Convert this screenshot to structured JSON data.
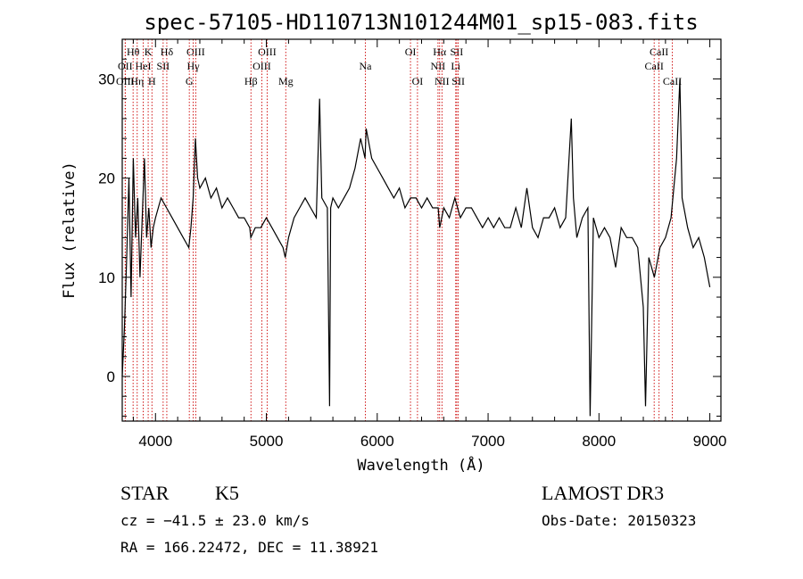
{
  "chart_data": {
    "type": "line",
    "title": "spec-57105-HD110713N101244M01_sp15-083.fits",
    "xlabel": "Wavelength (Å)",
    "ylabel": "Flux (relative)",
    "xlim": [
      3700,
      9100
    ],
    "ylim": [
      -4.5,
      34
    ],
    "xticks": [
      4000,
      5000,
      6000,
      7000,
      8000,
      9000
    ],
    "yticks": [
      0,
      10,
      20,
      30
    ],
    "grid": false,
    "series": [
      {
        "x": [
          3700,
          3720,
          3740,
          3760,
          3780,
          3800,
          3820,
          3840,
          3860,
          3880,
          3900,
          3920,
          3940,
          3960,
          3980,
          4000,
          4050,
          4100,
          4150,
          4200,
          4250,
          4300,
          4320,
          4340,
          4360,
          4380,
          4400,
          4450,
          4500,
          4550,
          4600,
          4650,
          4700,
          4750,
          4800,
          4850,
          4860,
          4900,
          4950,
          5000,
          5050,
          5100,
          5150,
          5170,
          5200,
          5250,
          5300,
          5350,
          5400,
          5450,
          5480,
          5500,
          5550,
          5570,
          5580,
          5600,
          5650,
          5700,
          5750,
          5800,
          5850,
          5890,
          5900,
          5950,
          6000,
          6050,
          6100,
          6150,
          6200,
          6250,
          6300,
          6350,
          6400,
          6450,
          6500,
          6550,
          6563,
          6600,
          6650,
          6700,
          6750,
          6800,
          6850,
          6900,
          6950,
          7000,
          7050,
          7100,
          7150,
          7200,
          7250,
          7300,
          7350,
          7400,
          7450,
          7500,
          7550,
          7600,
          7650,
          7700,
          7750,
          7770,
          7800,
          7850,
          7900,
          7920,
          7950,
          8000,
          8050,
          8100,
          8150,
          8200,
          8250,
          8300,
          8350,
          8400,
          8420,
          8450,
          8500,
          8550,
          8600,
          8650,
          8700,
          8730,
          8750,
          8800,
          8850,
          8900,
          8950,
          9000
        ],
        "y": [
          0,
          5,
          12,
          20,
          8,
          22,
          14,
          18,
          10,
          16,
          22,
          14,
          17,
          13,
          15,
          16,
          18,
          17,
          16,
          15,
          14,
          13,
          15,
          18,
          24,
          20,
          19,
          20,
          18,
          19,
          17,
          18,
          17,
          16,
          16,
          15,
          14,
          15,
          15,
          16,
          15,
          14,
          13,
          12,
          14,
          16,
          17,
          18,
          17,
          16,
          28,
          18,
          17,
          -3,
          17,
          18,
          17,
          18,
          19,
          21,
          24,
          22,
          25,
          22,
          21,
          20,
          19,
          18,
          19,
          17,
          18,
          18,
          17,
          18,
          17,
          17,
          15,
          17,
          16,
          18,
          16,
          17,
          17,
          16,
          15,
          16,
          15,
          16,
          15,
          15,
          17,
          15,
          19,
          15,
          14,
          16,
          16,
          17,
          15,
          16,
          26,
          18,
          14,
          16,
          17,
          -4,
          16,
          14,
          15,
          14,
          11,
          15,
          14,
          14,
          13,
          7,
          -3,
          12,
          10,
          13,
          14,
          16,
          22,
          30,
          18,
          15,
          13,
          14,
          12,
          9
        ]
      }
    ],
    "annotations": [
      {
        "label": "Hθ",
        "x": 3798,
        "row": 1
      },
      {
        "label": "OII",
        "x": 3727,
        "row": 2
      },
      {
        "label": "OIII",
        "x": 3727,
        "row": 3
      },
      {
        "label": "K",
        "x": 3934,
        "row": 1
      },
      {
        "label": "HeI",
        "x": 3889,
        "row": 2
      },
      {
        "label": "Hη",
        "x": 3835,
        "row": 3
      },
      {
        "label": "SII",
        "x": 4069,
        "row": 2
      },
      {
        "label": "H",
        "x": 3968,
        "row": 3
      },
      {
        "label": "Hδ",
        "x": 4102,
        "row": 1
      },
      {
        "label": "OIII",
        "x": 4363,
        "row": 1
      },
      {
        "label": "Hγ",
        "x": 4340,
        "row": 2
      },
      {
        "label": "G",
        "x": 4305,
        "row": 3
      },
      {
        "label": "Hβ",
        "x": 4861,
        "row": 3
      },
      {
        "label": "OIII",
        "x": 5007,
        "row": 1
      },
      {
        "label": "OIII",
        "x": 4959,
        "row": 2
      },
      {
        "label": "Mg",
        "x": 5175,
        "row": 3
      },
      {
        "label": "Na",
        "x": 5893,
        "row": 2
      },
      {
        "label": "OI",
        "x": 6300,
        "row": 1
      },
      {
        "label": "OI",
        "x": 6363,
        "row": 3
      },
      {
        "label": "Hα",
        "x": 6563,
        "row": 1
      },
      {
        "label": "NII",
        "x": 6548,
        "row": 2
      },
      {
        "label": "NII",
        "x": 6584,
        "row": 3
      },
      {
        "label": "SII",
        "x": 6717,
        "row": 1
      },
      {
        "label": "Li",
        "x": 6708,
        "row": 2
      },
      {
        "label": "SII",
        "x": 6731,
        "row": 3
      },
      {
        "label": "CaII",
        "x": 8542,
        "row": 1
      },
      {
        "label": "CaII",
        "x": 8498,
        "row": 2
      },
      {
        "label": "CaII",
        "x": 8662,
        "row": 3
      }
    ]
  },
  "info": {
    "class": "STAR",
    "subclass": "K5",
    "survey": "LAMOST DR3",
    "cz": "cz = −41.5 ± 23.0 km/s",
    "obs_date": "Obs-Date: 20150323",
    "radec": "RA = 166.22472, DEC =  11.38921"
  },
  "colors": {
    "line_markers": "#cc0000",
    "spectrum": "#000000"
  }
}
